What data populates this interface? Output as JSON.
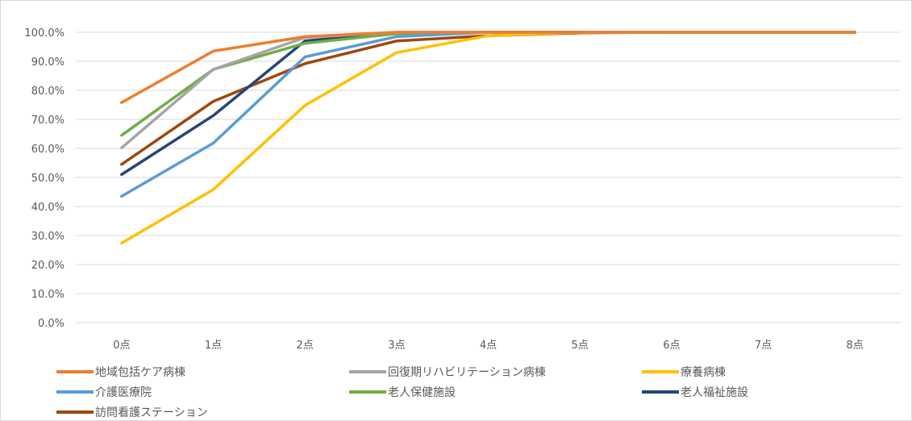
{
  "chart_data": {
    "type": "line",
    "categories": [
      "0点",
      "1点",
      "2点",
      "3点",
      "4点",
      "5点",
      "6点",
      "7点",
      "8点"
    ],
    "ylim": [
      0,
      100
    ],
    "yticks": [
      "0.0%",
      "10.0%",
      "20.0%",
      "30.0%",
      "40.0%",
      "50.0%",
      "60.0%",
      "70.0%",
      "80.0%",
      "90.0%",
      "100.0%"
    ],
    "grid": true,
    "legend_position": "bottom",
    "series": [
      {
        "name": "地域包括ケア病棟",
        "color": "#ed7d31",
        "values": [
          75.8,
          93.5,
          98.5,
          100,
          100,
          100,
          100,
          100,
          100
        ]
      },
      {
        "name": "回復期リハビリテーション病棟",
        "color": "#a5a5a5",
        "values": [
          60.2,
          87.2,
          98.2,
          100,
          100,
          100,
          100,
          100,
          100
        ]
      },
      {
        "name": "療養病棟",
        "color": "#ffc000",
        "values": [
          27.4,
          45.8,
          74.8,
          93.0,
          98.8,
          100,
          100,
          100,
          100
        ]
      },
      {
        "name": "介護医療院",
        "color": "#5b9bd5",
        "values": [
          43.5,
          61.8,
          91.5,
          98.5,
          100,
          100,
          100,
          100,
          100
        ]
      },
      {
        "name": "老人保健施設",
        "color": "#70ad47",
        "values": [
          64.5,
          87.2,
          96.2,
          99.5,
          100,
          100,
          100,
          100,
          100
        ]
      },
      {
        "name": "老人福祉施設",
        "color": "#264478",
        "values": [
          51.0,
          71.3,
          97.0,
          99.8,
          100,
          100,
          100,
          100,
          100
        ]
      },
      {
        "name": "訪問看護ステーション",
        "color": "#9e480e",
        "values": [
          54.5,
          76.2,
          89.2,
          97.0,
          98.8,
          99.8,
          100,
          100,
          100
        ]
      }
    ]
  }
}
